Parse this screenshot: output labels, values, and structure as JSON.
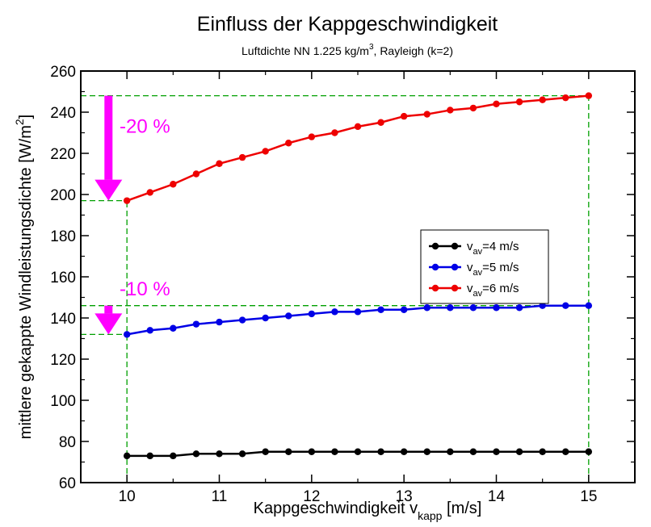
{
  "chart_data": {
    "type": "line",
    "title": "Einfluss der Kappgeschwindigkeit",
    "subtitle": {
      "text": "Luftdichte NN 1.225 kg/m",
      "sup": "3",
      "suffix": ", Rayleigh (k=2)"
    },
    "xlabel": {
      "text": "Kappgeschwindigkeit v",
      "sub": "kapp",
      "suffix": " [m/s]"
    },
    "ylabel": {
      "text": "mittlere gekappte Windleistungsdichte [W/m",
      "sup": "2",
      "suffix": "]"
    },
    "xlim": [
      9.5,
      15.5
    ],
    "ylim": [
      60,
      260
    ],
    "xticks": [
      "10",
      "11",
      "12",
      "13",
      "14",
      "15"
    ],
    "yticks": [
      "60",
      "80",
      "100",
      "120",
      "140",
      "160",
      "180",
      "200",
      "220",
      "240",
      "260"
    ],
    "legend_position": "right",
    "x": [
      10,
      10.25,
      10.5,
      10.75,
      11,
      11.25,
      11.5,
      11.75,
      12,
      12.25,
      12.5,
      12.75,
      13,
      13.25,
      13.5,
      13.75,
      14,
      14.25,
      14.5,
      14.75,
      15
    ],
    "series": [
      {
        "prefix": "v",
        "sub": "av",
        "suffix": "=4 m/s",
        "color": "#000000",
        "values": [
          73,
          73,
          73,
          74,
          74,
          74,
          75,
          75,
          75,
          75,
          75,
          75,
          75,
          75,
          75,
          75,
          75,
          75,
          75,
          75,
          75
        ]
      },
      {
        "prefix": "v",
        "sub": "av",
        "suffix": "=5 m/s",
        "color": "#0000e6",
        "values": [
          132,
          134,
          135,
          137,
          138,
          139,
          140,
          141,
          142,
          143,
          143,
          144,
          144,
          145,
          145,
          145,
          145,
          145,
          146,
          146,
          146
        ]
      },
      {
        "prefix": "v",
        "sub": "av",
        "suffix": "=6 m/s",
        "color": "#ee0000",
        "values": [
          197,
          201,
          205,
          210,
          215,
          218,
          221,
          225,
          228,
          230,
          233,
          235,
          238,
          239,
          241,
          242,
          244,
          245,
          246,
          247,
          248
        ]
      }
    ],
    "annotations": [
      {
        "text": "-20 %",
        "color": "#ff00ff",
        "x": 9.92,
        "y": 230,
        "arrow_x": 9.8,
        "arrow_from": 248,
        "arrow_to": 197
      },
      {
        "text": "-10 %",
        "color": "#ff00ff",
        "x": 9.92,
        "y": 151,
        "arrow_x": 9.8,
        "arrow_from": 146,
        "arrow_to": 132
      }
    ],
    "reference_lines": {
      "color": "#00a000",
      "horizontal": [
        {
          "y": 248,
          "x_from": 9.5,
          "x_to": 15
        },
        {
          "y": 197,
          "x_from": 9.5,
          "x_to": 10
        },
        {
          "y": 146,
          "x_from": 9.5,
          "x_to": 15
        },
        {
          "y": 132,
          "x_from": 9.5,
          "x_to": 10
        }
      ],
      "vertical": [
        {
          "x": 10,
          "y_from": 60,
          "y_to": 197
        },
        {
          "x": 15,
          "y_from": 60,
          "y_to": 248
        }
      ]
    }
  }
}
